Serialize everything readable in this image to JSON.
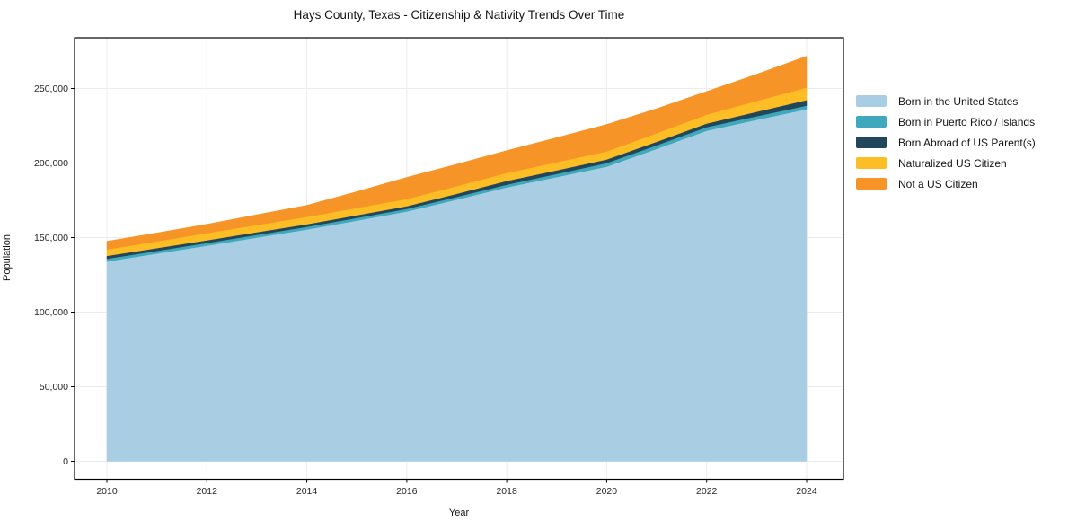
{
  "chart": {
    "title": "Hays County, Texas - Citizenship & Nativity Trends Over Time",
    "xlabel": "Year",
    "ylabel": "Population"
  },
  "chart_data": {
    "type": "area",
    "stacked": true,
    "title": "Hays County, Texas - Citizenship & Nativity Trends Over Time",
    "xlabel": "Year",
    "ylabel": "Population",
    "x": [
      2010,
      2011,
      2012,
      2013,
      2014,
      2015,
      2016,
      2017,
      2018,
      2019,
      2020,
      2021,
      2022,
      2023,
      2024
    ],
    "series": [
      {
        "name": "Born in the United States",
        "color": "#a9cee3",
        "values": [
          134000,
          139300,
          144600,
          150000,
          155400,
          161400,
          167500,
          175500,
          183700,
          190600,
          197600,
          209500,
          221700,
          229000,
          236100
        ]
      },
      {
        "name": "Born in Puerto Rico / Islands",
        "color": "#3fa8bc",
        "values": [
          1800,
          1800,
          1800,
          1800,
          1800,
          1800,
          1800,
          1800,
          1800,
          2100,
          2400,
          2400,
          2400,
          2400,
          2400
        ]
      },
      {
        "name": "Born Abroad of US Parent(s)",
        "color": "#22465a",
        "values": [
          1900,
          1850,
          1800,
          1800,
          1800,
          1800,
          1800,
          2100,
          2500,
          2450,
          2400,
          2400,
          2400,
          3000,
          3700
        ]
      },
      {
        "name": "Naturalized US Citizen",
        "color": "#fdbd24",
        "values": [
          4300,
          4500,
          4800,
          4850,
          4900,
          4850,
          4800,
          5100,
          5400,
          5400,
          5400,
          5700,
          6000,
          7200,
          8400
        ]
      },
      {
        "name": "Not a US Citizen",
        "color": "#f79428",
        "values": [
          5500,
          5700,
          6000,
          6900,
          7800,
          11000,
          14500,
          14700,
          15000,
          16500,
          18100,
          16500,
          15500,
          18000,
          21100
        ]
      }
    ],
    "xticks": [
      2010,
      2012,
      2014,
      2016,
      2018,
      2020,
      2022,
      2024
    ],
    "xtick_labels": [
      "2010",
      "2012",
      "2014",
      "2016",
      "2018",
      "2020",
      "2022",
      "2024"
    ],
    "yticks": [
      0,
      50000,
      100000,
      150000,
      200000,
      250000
    ],
    "ytick_labels": [
      "0",
      "50,000",
      "100,000",
      "150,000",
      "200,000",
      "250,000"
    ],
    "ylim_tick_range": [
      0,
      250000
    ],
    "grid": true,
    "legend_position": "right"
  },
  "colors": {
    "grid": "#ececec",
    "spine": "#000000",
    "text": "#141414",
    "tick_text": "#262626"
  }
}
